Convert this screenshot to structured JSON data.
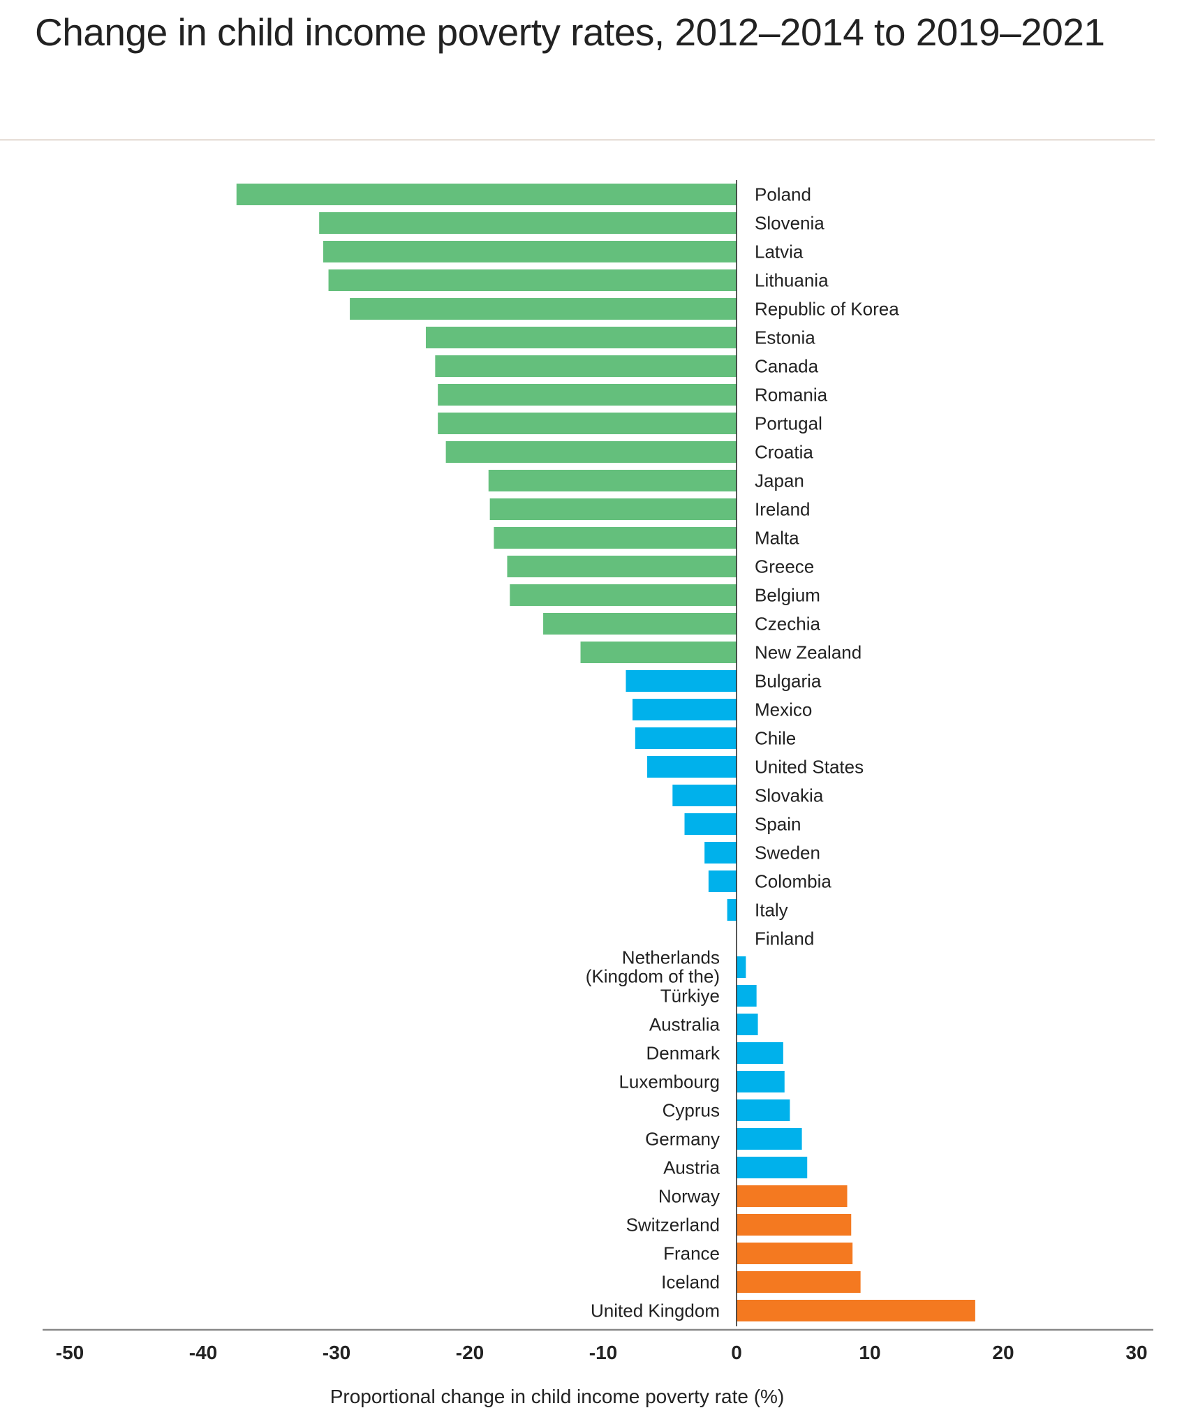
{
  "chart_data": {
    "type": "bar",
    "orientation": "horizontal",
    "title": "Change in child income poverty rates, 2012–2014 to 2019–2021",
    "xlabel": "Proportional change in child income poverty rate (%)",
    "ylabel": "",
    "xlim": [
      -50,
      30
    ],
    "xticks": [
      "-50",
      "-40",
      "-30",
      "-20",
      "-10",
      "0",
      "10",
      "20",
      "30"
    ],
    "grid": false,
    "colors": {
      "large_decrease": "#64bf7c",
      "small_change": "#00b1eb",
      "large_increase": "#f47920"
    },
    "categories": [
      "Poland",
      "Slovenia",
      "Latvia",
      "Lithuania",
      "Republic of Korea",
      "Estonia",
      "Canada",
      "Romania",
      "Portugal",
      "Croatia",
      "Japan",
      "Ireland",
      "Malta",
      "Greece",
      "Belgium",
      "Czechia",
      "New Zealand",
      "Bulgaria",
      "Mexico",
      "Chile",
      "United States",
      "Slovakia",
      "Spain",
      "Sweden",
      "Colombia",
      "Italy",
      "Finland",
      "Netherlands (Kingdom of the)",
      "Türkiye",
      "Australia",
      "Denmark",
      "Luxembourg",
      "Cyprus",
      "Germany",
      "Austria",
      "Norway",
      "Switzerland",
      "France",
      "Iceland",
      "United Kingdom"
    ],
    "values": [
      -37.5,
      -31.3,
      -31.0,
      -30.6,
      -29.0,
      -23.3,
      -22.6,
      -22.4,
      -22.4,
      -21.8,
      -18.6,
      -18.5,
      -18.2,
      -17.2,
      -17.0,
      -14.5,
      -11.7,
      -8.3,
      -7.8,
      -7.6,
      -6.7,
      -4.8,
      -3.9,
      -2.4,
      -2.1,
      -0.7,
      0,
      0.7,
      1.5,
      1.6,
      3.5,
      3.6,
      4.0,
      4.9,
      5.3,
      8.3,
      8.6,
      8.7,
      9.3,
      17.9
    ],
    "groups": [
      "large_decrease",
      "large_decrease",
      "large_decrease",
      "large_decrease",
      "large_decrease",
      "large_decrease",
      "large_decrease",
      "large_decrease",
      "large_decrease",
      "large_decrease",
      "large_decrease",
      "large_decrease",
      "large_decrease",
      "large_decrease",
      "large_decrease",
      "large_decrease",
      "large_decrease",
      "small_change",
      "small_change",
      "small_change",
      "small_change",
      "small_change",
      "small_change",
      "small_change",
      "small_change",
      "small_change",
      "small_change",
      "small_change",
      "small_change",
      "small_change",
      "small_change",
      "small_change",
      "small_change",
      "small_change",
      "small_change",
      "large_increase",
      "large_increase",
      "large_increase",
      "large_increase",
      "large_increase"
    ]
  }
}
